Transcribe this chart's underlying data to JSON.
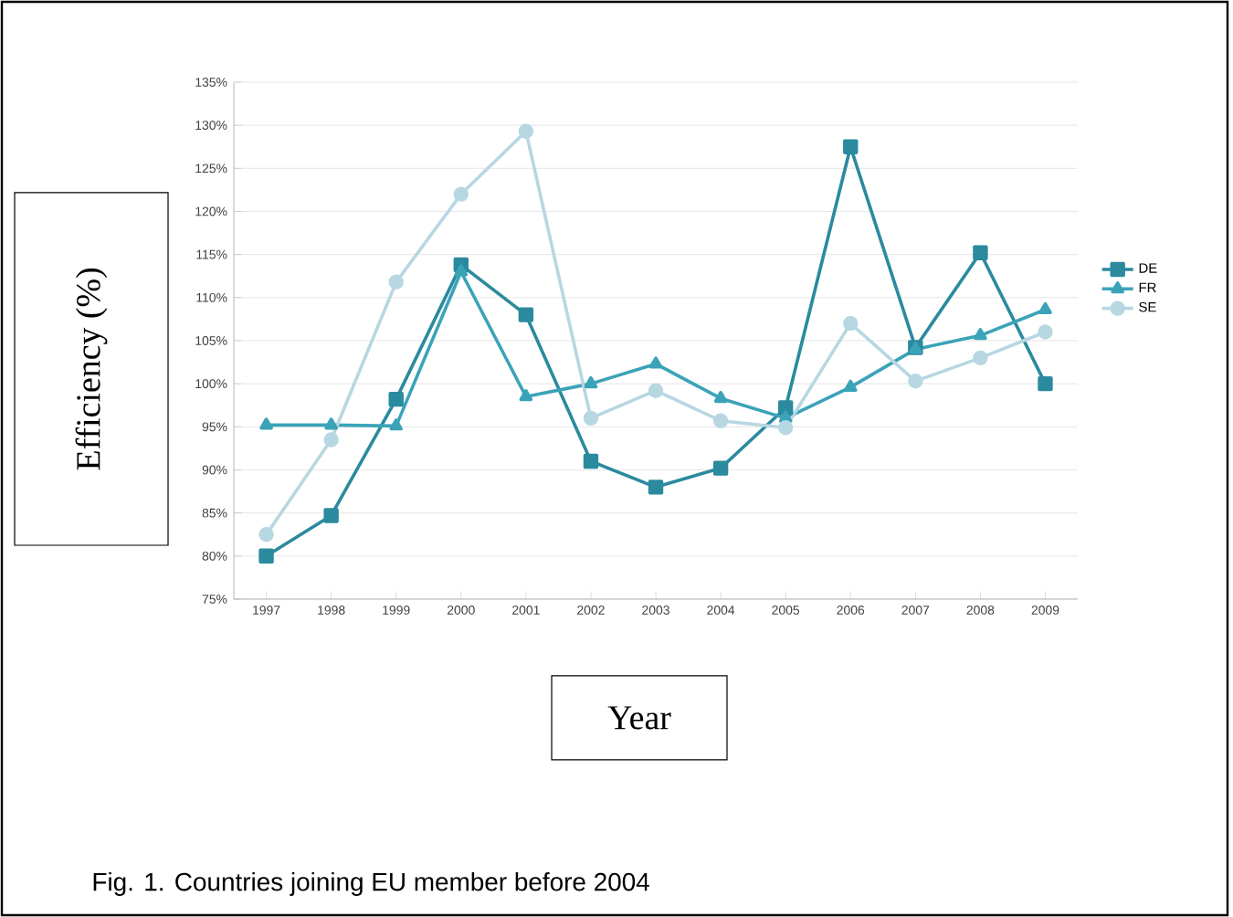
{
  "chart_data": {
    "type": "line",
    "ylabel": "Efficiency (%)",
    "xlabel": "Year",
    "categories": [
      "1997",
      "1998",
      "1999",
      "2000",
      "2001",
      "2002",
      "2003",
      "2004",
      "2005",
      "2006",
      "2007",
      "2008",
      "2009"
    ],
    "series": [
      {
        "name": "DE",
        "color": "#2b8a9e",
        "marker": "square",
        "values": [
          80,
          84.7,
          98.2,
          113.8,
          108,
          91,
          88,
          90.2,
          97.2,
          127.5,
          104.2,
          115.2,
          100
        ]
      },
      {
        "name": "FR",
        "color": "#3ba3b8",
        "marker": "triangle",
        "values": [
          95.2,
          95.2,
          95.1,
          113,
          98.5,
          100,
          102.3,
          98.3,
          96,
          99.6,
          104,
          105.6,
          108.6
        ]
      },
      {
        "name": "SE",
        "color": "#b7d7e2",
        "marker": "circle",
        "values": [
          82.5,
          93.5,
          111.8,
          122,
          129.3,
          96,
          99.2,
          95.7,
          94.9,
          107,
          100.3,
          103,
          106
        ]
      }
    ],
    "ylim": [
      75,
      135
    ],
    "yticks": [
      {
        "value": 75,
        "label": "75%"
      },
      {
        "value": 80,
        "label": "80%"
      },
      {
        "value": 85,
        "label": "85%"
      },
      {
        "value": 90,
        "label": "90%"
      },
      {
        "value": 95,
        "label": "95%"
      },
      {
        "value": 100,
        "label": "100%"
      },
      {
        "value": 105,
        "label": "105%"
      },
      {
        "value": 110,
        "label": "110%"
      },
      {
        "value": 115,
        "label": "115%"
      },
      {
        "value": 120,
        "label": "120%"
      },
      {
        "value": 125,
        "label": "125%"
      },
      {
        "value": 130,
        "label": "130%"
      },
      {
        "value": 135,
        "label": "135%"
      }
    ],
    "grid": "y",
    "legend": "right",
    "line_style": "solid",
    "annotations": [
      "Fig. 1. Countries joining EU member before 2004"
    ]
  }
}
